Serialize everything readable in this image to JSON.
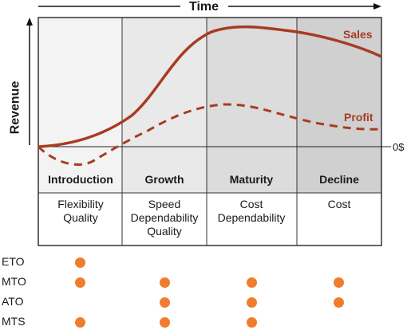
{
  "time_axis_label": "Time",
  "revenue_axis_label": "Revenue",
  "zero_label": "0$",
  "curves": {
    "sales": "Sales",
    "profit": "Profit"
  },
  "stages": [
    {
      "name": "Introduction",
      "priorities": [
        "Flexibility",
        "Quality"
      ]
    },
    {
      "name": "Growth",
      "priorities": [
        "Speed",
        "Dependability",
        "Quality"
      ]
    },
    {
      "name": "Maturity",
      "priorities": [
        "Cost",
        "Dependability"
      ]
    },
    {
      "name": "Decline",
      "priorities": [
        "Cost"
      ]
    }
  ],
  "strategy_rows": [
    {
      "label": "ETO",
      "dots": [
        true,
        false,
        false,
        false
      ]
    },
    {
      "label": "MTO",
      "dots": [
        true,
        true,
        true,
        true
      ]
    },
    {
      "label": "ATO",
      "dots": [
        false,
        true,
        true,
        true
      ]
    },
    {
      "label": "MTS",
      "dots": [
        true,
        true,
        true,
        false
      ]
    }
  ],
  "colors": {
    "curve": "#a83c23",
    "dot": "#ef7d2d",
    "stage_fills": [
      "#f3f3f3",
      "#e9e9e9",
      "#dcdcdc",
      "#d0d0d0"
    ],
    "header_fills": [
      "#f3f3f3",
      "#e9e9e9",
      "#dcdcdc",
      "#d0d0d0"
    ]
  }
}
